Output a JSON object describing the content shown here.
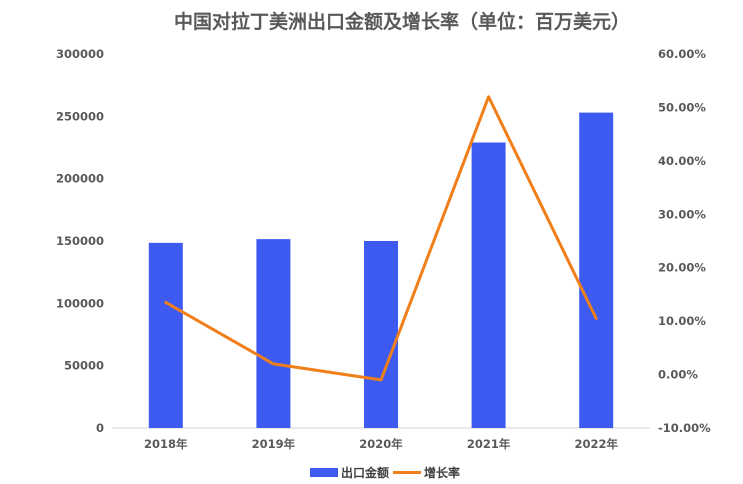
{
  "chart_data": {
    "type": "bar",
    "title": "中国对拉丁美洲出口金额及增长率（单位：百万美元）",
    "categories": [
      "2018年",
      "2019年",
      "2020年",
      "2021年",
      "2022年"
    ],
    "series": [
      {
        "name": "出口金额",
        "type": "bar",
        "axis": "left",
        "color": "#3d5af1",
        "values": [
          148500,
          151500,
          150000,
          229000,
          253000
        ]
      },
      {
        "name": "增长率",
        "type": "line",
        "axis": "right",
        "color": "#f07f1a",
        "values": [
          13.5,
          2.0,
          -1.0,
          52.0,
          10.5
        ]
      }
    ],
    "y_left": {
      "ylim": [
        0,
        300000
      ],
      "ticks": [
        "0",
        "50000",
        "100000",
        "150000",
        "200000",
        "250000",
        "300000"
      ]
    },
    "y_right": {
      "ylim": [
        -10,
        60
      ],
      "ticks": [
        "-10.00%",
        "0.00%",
        "10.00%",
        "20.00%",
        "30.00%",
        "40.00%",
        "50.00%",
        "60.00%"
      ]
    },
    "grid": false,
    "legend": "bottom-center"
  }
}
